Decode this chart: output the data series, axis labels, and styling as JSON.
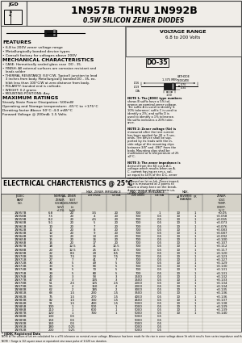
{
  "title1": "1N957B THRU 1N992B",
  "title2": "0.5W SILICON ZENER DIODES",
  "voltage_range_line1": "VOLTAGE RANGE",
  "voltage_range_line2": "6.8 to 200 Volts",
  "package": "DO-35",
  "features_title": "FEATURES",
  "features": [
    "• 6.8 to 200V zener voltage range",
    "• Metallurgically bonded device types",
    "• Consult factory for voltages above 200V"
  ],
  "mech_title": "MECHANICAL CHARACTERISTICS",
  "mech": [
    "• CASE: Hermetically sealed glass case  DO - 35.",
    "• FINISH: All external surfaces are corrosion resistant and lea-",
    "   ds solder",
    "• THERMAL RESISTANCE (50°C/W, Typical) junction to lead 3",
    "   inches from body. Metallurgically bonded DO - 35, exhibit",
    "   less than 100°C/W at zero distance from body.",
    "• POLARITY: banded end is cathode.",
    "• WEIGHT: 0.2 grams",
    "• MOUNTING POSITIONS: Any"
  ],
  "max_title": "MAXIMUM RATINGS",
  "max_ratings": [
    "Steady State Power Dissipation: 500mW",
    "Operating and Storage temperature: -65°C to +175°C",
    "Derating factor Above 50°C: 4.0 mW/°C",
    "Forward Voltage @ 200mA: 1.5 Volts"
  ],
  "elec_title": "ELECTRICAL CHARCTERISTICS @ 25°C",
  "col_headers_row1": [
    "JEDEC",
    "NOMINAL",
    "ZENER",
    "MAX. ZENER IMPEDANCE",
    "MAX. ZENER IMPEDANCE",
    "MAX.",
    "ZENER"
  ],
  "col_headers_row2": [
    "PART",
    "ZENER",
    "TEST",
    "Zzt Ohms",
    "Zzk Ohms",
    "REVERSE",
    "VOLTAGE"
  ],
  "col_headers_row3": [
    "NO.",
    "VOLTAGE",
    "CURRENT",
    "@ Izt mA",
    "@ Izk mA",
    "LEAKAGE",
    "TEMP."
  ],
  "col_headers_row4": [
    "",
    "Vz(V)",
    "Izt(mA)",
    "",
    "",
    "CURRENT",
    "COEFF."
  ],
  "col_headers_row5": [
    "",
    "+/-5%",
    "",
    "",
    "",
    "uA  @VR",
    "%/°C"
  ],
  "table_data": [
    [
      "1N957B",
      "6.8",
      "20",
      "3.5",
      "20",
      "700",
      "1",
      "10",
      "1",
      "+0.05"
    ],
    [
      "1N958B",
      "7.5",
      "20",
      "4",
      "20",
      "700",
      "0.5",
      "10",
      "1",
      "+0.058"
    ],
    [
      "1N959B",
      "8.2",
      "20",
      "4.5",
      "20",
      "700",
      "0.5",
      "10",
      "1",
      "+0.065"
    ],
    [
      "1N960B",
      "9.1",
      "20",
      "5",
      "20",
      "700",
      "0.5",
      "10",
      "1",
      "+0.073"
    ],
    [
      "1N961B",
      "10",
      "20",
      "7",
      "20",
      "700",
      "0.5",
      "10",
      "1",
      "+0.076"
    ],
    [
      "1N962B",
      "11",
      "20",
      "8",
      "20",
      "700",
      "0.5",
      "10",
      "1",
      "+0.083"
    ],
    [
      "1N963B",
      "12",
      "20",
      "9",
      "20",
      "700",
      "0.5",
      "10",
      "1",
      "+0.087"
    ],
    [
      "1N964B",
      "13",
      "20",
      "13",
      "20",
      "700",
      "0.5",
      "10",
      "1",
      "+0.092"
    ],
    [
      "1N965B",
      "15",
      "20",
      "16",
      "20",
      "700",
      "0.5",
      "10",
      "1",
      "+0.100"
    ],
    [
      "1N966B",
      "16",
      "20",
      "17",
      "20",
      "700",
      "0.5",
      "10",
      "1",
      "+0.107"
    ],
    [
      "1N967B",
      "18",
      "12.5",
      "21",
      "12.5",
      "700",
      "0.5",
      "10",
      "1",
      "+0.112"
    ],
    [
      "1N968B",
      "20",
      "12.5",
      "25",
      "12.5",
      "700",
      "0.5",
      "10",
      "1",
      "+0.117"
    ],
    [
      "1N969B",
      "22",
      "8.5",
      "29",
      "8.5",
      "700",
      "0.5",
      "10",
      "1",
      "+0.120"
    ],
    [
      "1N970B",
      "24",
      "7.5",
      "33",
      "7.5",
      "700",
      "0.5",
      "10",
      "1",
      "+0.123"
    ],
    [
      "1N971B",
      "27",
      "7",
      "41",
      "7",
      "700",
      "0.5",
      "10",
      "1",
      "+0.127"
    ],
    [
      "1N972B",
      "30",
      "5",
      "49",
      "5",
      "700",
      "0.5",
      "10",
      "1",
      "+0.129"
    ],
    [
      "1N973B",
      "33",
      "5",
      "58",
      "5",
      "700",
      "0.5",
      "10",
      "1",
      "+0.130"
    ],
    [
      "1N974B",
      "36",
      "5",
      "70",
      "5",
      "700",
      "0.5",
      "10",
      "1",
      "+0.131"
    ],
    [
      "1N975B",
      "39",
      "5",
      "80",
      "5",
      "700",
      "0.5",
      "10",
      "1",
      "+0.131"
    ],
    [
      "1N976B",
      "43",
      "3",
      "93",
      "3",
      "1500",
      "0.5",
      "10",
      "1",
      "+0.132"
    ],
    [
      "1N977B",
      "47",
      "3",
      "105",
      "3",
      "1500",
      "0.5",
      "10",
      "1",
      "+0.133"
    ],
    [
      "1N978B",
      "51",
      "2.5",
      "125",
      "2.5",
      "2000",
      "0.5",
      "10",
      "1",
      "+0.134"
    ],
    [
      "1N979B",
      "56",
      "2",
      "150",
      "2",
      "2000",
      "0.5",
      "10",
      "1",
      "+0.134"
    ],
    [
      "1N980B",
      "62",
      "2",
      "185",
      "2",
      "3000",
      "0.5",
      "10",
      "1",
      "+0.135"
    ],
    [
      "1N981B",
      "68",
      "1.5",
      "230",
      "1.5",
      "3500",
      "0.5",
      "10",
      "1",
      "+0.136"
    ],
    [
      "1N982B",
      "75",
      "1.5",
      "270",
      "1.5",
      "4000",
      "0.5",
      "10",
      "1",
      "+0.136"
    ],
    [
      "1N983B",
      "82",
      "1.5",
      "330",
      "1.5",
      "4500",
      "0.5",
      "10",
      "1",
      "+0.137"
    ],
    [
      "1N984B",
      "91",
      "1.5",
      "400",
      "1.5",
      "5000",
      "0.5",
      "10",
      "1",
      "+0.138"
    ],
    [
      "1N985B",
      "100",
      "1",
      "500",
      "1",
      "5000",
      "0.5",
      "10",
      "1",
      "+0.139"
    ],
    [
      "1N986B",
      "110",
      "1",
      "600",
      "1",
      "5000",
      "0.5",
      "10",
      "1",
      "+0.139"
    ],
    [
      "1N987B",
      "120",
      "1",
      "700",
      "1",
      "5000",
      "0.5",
      "10",
      "1",
      "+0.140"
    ],
    [
      "1N988B",
      "130",
      "0.5",
      "",
      "",
      "5000",
      "0.5",
      "",
      "",
      ""
    ],
    [
      "1N989B",
      "150",
      "0.5",
      "",
      "",
      "5000",
      "0.5",
      "",
      "",
      ""
    ],
    [
      "1N990B",
      "160",
      "0.5",
      "",
      "",
      "5000",
      "0.5",
      "",
      "",
      ""
    ],
    [
      "1N991B",
      "180",
      "0.25",
      "",
      "",
      "5000",
      "0.5",
      "",
      "",
      ""
    ],
    [
      "1N992B",
      "200",
      "0.25",
      "",
      "",
      "5000",
      "0.5",
      "",
      "",
      ""
    ]
  ],
  "note1": "NOTE 1: The JEDEC type numbers shows B suffix have a 5% tolerance on nominal zener voltage. The suffix A is used to identify ±10% tolerance; suffix C is used to identify a 2%; and suffix D is used to identify a 1% tolerance. No suffix indicates a 20% tolerance.",
  "note2": "NOTE 2: Zener voltage (Vz) is measured after the test current has been applied for 30 ± 5 seconds. The device shall be supported by its leads with the inside edge of the mounting clips between 3/8\" and .090\" from the body. Mounting clips shall be maintained at a temperature of 25 ±2°C.",
  "note3": "NOTE 3: The zener impedance is derived from the 60 cycle A.C. voltage which results when an A.C. current having an r.m.s. value equal to 10% of the D.C. zener current (Izt or Izk) is superimposed on Izt or Izk. Zener impedance is measured at 2 points to insure a sharp knee on the breakdown curve and to eliminate unstable units.",
  "footer1": "* JEDEC Registered Data",
  "footer2": "NOTE A The values of Izk are calculated for a ±5% tolerance on nominal zener voltage. Allowance has been made for the rise in zener voltage above Vz which results from series impedance and the increase in junction temperature as power dissipation approaches 500mW. In the case of individual diodes Izk is that value of current which results in a dissipation of 500 mW at 75°C lead temperature at 3/8\" from body.",
  "footer3": "NOTE • Surge is 1/2 square wave or equivalent sine wave pulse of 1/120 sec duration.",
  "watermark": "ALLDATASHEET",
  "bg_color": "#f0ede8",
  "white": "#ffffff",
  "border": "#444444",
  "header_bg": "#d8d5cc"
}
